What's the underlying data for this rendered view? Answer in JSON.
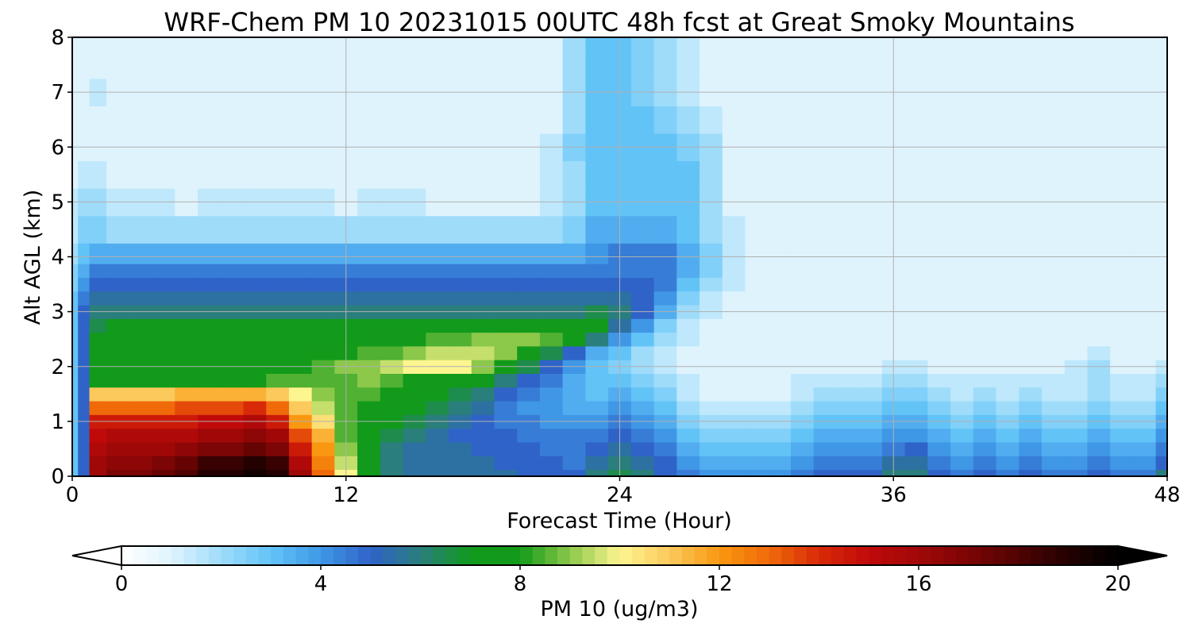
{
  "chart_data": {
    "type": "heatmap",
    "title": "WRF-Chem PM 10  20231015 00UTC 48h fcst at Great Smoky Mountains",
    "xlabel": "Forecast Time (Hour)",
    "ylabel": "Alt AGL (km)",
    "xlim": [
      0,
      48
    ],
    "ylim": [
      0,
      8
    ],
    "xticks": [
      0,
      12,
      24,
      36,
      48
    ],
    "yticks": [
      0,
      1,
      2,
      3,
      4,
      5,
      6,
      7,
      8
    ],
    "grid": true,
    "colorbar": {
      "label": "PM 10  (ug/m3)",
      "orientation": "horizontal",
      "position": "bottom",
      "range": [
        0,
        20
      ],
      "ticks": [
        0,
        4,
        8,
        12,
        16,
        20
      ],
      "extend": "both",
      "colors": {
        "0": "#ffffff",
        "1": "#dff3fd",
        "2": "#9fdcfa",
        "3": "#62c3f7",
        "4": "#3f97e6",
        "5": "#2f63c8",
        "6": "#2a7e7c",
        "7": "#119a1c",
        "8": "#139a1a",
        "9": "#8cc84a",
        "10": "#fdf590",
        "11": "#fbc95c",
        "12": "#f99810",
        "13": "#f06a0a",
        "14": "#d82a08",
        "15": "#c00a0a",
        "16": "#a00808",
        "17": "#7c0505",
        "18": "#4f0303",
        "19": "#230101",
        "20": "#000000"
      }
    },
    "x_hours": [
      0,
      0.5,
      1,
      2,
      3,
      4,
      5,
      6,
      7,
      8,
      9,
      10,
      11,
      12,
      13,
      14,
      15,
      16,
      17,
      18,
      19,
      20,
      21,
      22,
      23,
      24,
      25,
      26,
      27,
      28,
      29,
      30,
      31,
      32,
      33,
      34,
      35,
      36,
      37,
      38,
      39,
      40,
      41,
      42,
      43,
      44,
      45,
      46,
      47,
      48
    ],
    "y_km": [
      0,
      0.25,
      0.5,
      0.75,
      1,
      1.25,
      1.5,
      1.75,
      2,
      2.25,
      2.5,
      2.75,
      3,
      3.25,
      3.5,
      3.75,
      4,
      4.5,
      5,
      5.5,
      6,
      6.5,
      7,
      7.5,
      8
    ],
    "rows_pm10_by_altitude": [
      [
        3,
        5,
        16,
        17,
        17,
        17.5,
        18,
        19,
        19,
        19.5,
        19,
        16,
        13,
        10,
        7,
        6,
        5.5,
        5.5,
        5.5,
        5.5,
        5.5,
        5,
        5,
        5,
        6,
        6.5,
        6,
        5,
        4.5,
        4,
        4,
        4,
        4,
        4.5,
        5,
        5,
        5,
        6,
        6,
        5,
        4.5,
        5,
        4.5,
        5,
        4.5,
        4.5,
        5,
        4.5,
        4.5,
        6
      ],
      [
        3,
        5,
        16,
        16.5,
        16.5,
        17,
        17.5,
        18.5,
        18.5,
        19,
        18.5,
        15.5,
        12.5,
        9.5,
        7,
        6,
        5.5,
        5.5,
        5.5,
        5.5,
        5,
        5,
        5,
        4.5,
        5.5,
        6,
        5.5,
        5,
        4,
        3.5,
        3.5,
        3.5,
        3.5,
        4,
        4.5,
        4.5,
        4.5,
        5.5,
        5.5,
        4.5,
        4,
        4.5,
        4,
        4.5,
        4,
        4,
        4.5,
        4,
        4,
        5
      ],
      [
        3,
        5,
        15.5,
        16,
        16,
        16,
        16.5,
        17,
        17,
        17.5,
        17,
        14.5,
        12,
        9,
        7,
        6,
        5.5,
        5.5,
        5.5,
        5,
        5,
        5,
        4.5,
        4.5,
        5,
        5.5,
        5,
        4.5,
        3.5,
        3,
        3,
        3,
        3,
        3.5,
        4,
        4,
        4,
        4.5,
        5,
        4,
        3.5,
        4,
        3.5,
        4,
        3.5,
        3.5,
        4,
        3.5,
        3.5,
        4.5
      ],
      [
        3,
        5,
        15,
        15.5,
        15.5,
        15.5,
        15.5,
        16,
        16,
        16.5,
        16,
        13.5,
        11.5,
        8.5,
        7.5,
        6.5,
        6,
        5.5,
        5,
        5,
        5,
        4.5,
        4.5,
        4.5,
        4.5,
        5,
        4.5,
        4,
        3,
        2.5,
        2.5,
        2.5,
        2.5,
        3,
        3.5,
        3.5,
        3.5,
        4,
        4,
        3.5,
        3,
        3.5,
        3,
        3.5,
        3,
        3,
        3.5,
        3,
        3,
        4
      ],
      [
        3,
        5,
        14.5,
        14.5,
        14.5,
        14.5,
        14.5,
        15,
        15,
        15.5,
        14.5,
        12,
        10.5,
        8.5,
        7.5,
        7,
        6.5,
        6,
        5.5,
        5,
        4.5,
        4.5,
        4,
        4,
        4,
        4.5,
        4,
        3.5,
        2.5,
        2,
        2,
        2,
        2,
        2.5,
        3,
        3,
        3,
        3.5,
        3.5,
        3,
        2.5,
        3,
        2.5,
        3,
        2.5,
        2.5,
        3,
        2.5,
        2.5,
        3.5
      ],
      [
        3,
        5,
        13,
        13,
        13,
        13,
        13.5,
        13.5,
        13.5,
        14,
        13,
        11,
        9.5,
        8.5,
        8,
        7.5,
        7,
        6.5,
        6,
        5.5,
        4.5,
        4,
        4,
        3.5,
        3.5,
        4,
        3.5,
        3,
        2,
        1.5,
        1.5,
        1.5,
        1.5,
        2,
        2.5,
        2.5,
        2.5,
        3,
        3,
        2.5,
        2,
        2.5,
        2,
        2.5,
        2,
        2,
        2.5,
        2,
        2,
        3
      ],
      [
        3,
        5,
        11,
        11,
        11,
        11,
        11.5,
        11.5,
        11.5,
        11.5,
        11,
        10,
        9,
        8.5,
        8.5,
        8,
        7.5,
        7,
        6.5,
        6,
        5,
        4.5,
        4,
        3.5,
        3,
        3.5,
        3,
        2.5,
        1.5,
        1,
        1,
        1,
        1,
        1.5,
        2,
        2,
        2,
        2.5,
        2.5,
        2,
        1.5,
        2,
        1.5,
        2,
        1.5,
        1.5,
        2,
        1.5,
        1.5,
        2.5
      ],
      [
        3,
        5,
        7.5,
        8,
        8,
        8,
        8,
        8,
        8,
        8,
        8.5,
        8.5,
        8.5,
        8.5,
        9,
        8.5,
        8,
        8,
        7.5,
        7,
        6,
        5,
        4.5,
        3.5,
        3,
        3,
        2.5,
        2,
        1.5,
        1,
        1,
        1,
        1,
        1.5,
        1.5,
        1.5,
        1.5,
        2,
        2,
        1.5,
        1.5,
        1.5,
        1.5,
        1.5,
        1.5,
        1.5,
        2,
        1.5,
        1.5,
        2
      ],
      [
        3,
        5,
        7.5,
        7.5,
        7.5,
        7.5,
        7.5,
        7.5,
        7.5,
        7.5,
        7.5,
        8,
        8.5,
        9,
        9,
        9.5,
        10,
        10,
        10,
        9,
        8,
        6.5,
        5,
        4,
        3,
        2.5,
        2,
        1.5,
        1,
        1,
        1,
        1,
        1,
        1,
        1,
        1,
        1,
        1.5,
        1.5,
        1,
        1,
        1,
        1,
        1,
        1,
        1.5,
        2,
        1,
        1,
        1.5
      ],
      [
        3,
        5,
        7,
        7,
        7,
        7.5,
        7.5,
        7.5,
        7.5,
        7.5,
        7.5,
        7.5,
        8,
        8,
        8.5,
        8.5,
        9,
        9.5,
        9.5,
        9.5,
        9,
        8,
        6.5,
        5,
        3.5,
        3,
        2,
        1.5,
        1,
        1,
        1,
        1,
        1,
        1,
        1,
        1,
        1,
        1,
        1,
        1,
        1,
        1,
        1,
        1,
        1,
        1,
        1.5,
        1,
        1,
        1
      ],
      [
        3,
        5,
        7,
        7,
        7,
        7,
        7,
        7,
        7,
        7,
        7,
        7,
        7.5,
        7.5,
        7.5,
        8,
        8,
        8.5,
        8.5,
        9,
        9,
        9,
        8.5,
        7.5,
        6,
        4,
        3,
        2,
        1.5,
        1,
        1,
        1,
        1,
        1,
        1,
        1,
        1,
        1,
        1,
        1,
        1,
        1,
        1,
        1,
        1,
        1,
        1,
        1,
        1,
        1
      ],
      [
        3,
        5,
        6.5,
        7,
        7,
        7,
        7,
        7,
        7,
        7,
        7,
        7,
        7,
        7,
        7,
        7,
        7,
        7,
        7,
        7,
        7.5,
        7.5,
        7.5,
        7.5,
        7,
        5.5,
        4,
        2.5,
        1.5,
        1,
        1,
        1,
        1,
        1,
        1,
        1,
        1,
        1,
        1,
        1,
        1,
        1,
        1,
        1,
        1,
        1,
        1,
        1,
        1,
        1
      ],
      [
        3,
        5,
        6,
        6,
        6,
        6,
        6,
        6,
        6,
        6,
        6,
        6,
        6,
        6,
        6,
        6,
        6,
        6,
        6,
        6,
        6,
        6,
        6,
        6,
        6.5,
        6,
        5,
        3.5,
        2,
        1.5,
        1,
        1,
        1,
        1,
        1,
        1,
        1,
        1,
        1,
        1,
        1,
        1,
        1,
        1,
        1,
        1,
        1,
        1,
        1,
        1
      ],
      [
        3,
        4.5,
        5.5,
        5.5,
        5.5,
        5.5,
        5.5,
        5.5,
        5.5,
        5.5,
        5.5,
        5.5,
        5.5,
        5.5,
        5.5,
        5.5,
        5.5,
        5.5,
        5.5,
        5.5,
        5.5,
        5.5,
        5.5,
        5.5,
        5.5,
        5.5,
        5,
        4,
        2.5,
        1.5,
        1,
        1,
        1,
        1,
        1,
        1,
        1,
        1,
        1,
        1,
        1,
        1,
        1,
        1,
        1,
        1,
        1,
        1,
        1,
        1
      ],
      [
        2.5,
        4,
        5,
        5,
        5,
        5,
        5,
        5,
        5,
        5,
        5,
        5,
        5,
        5,
        5,
        5,
        5,
        5,
        5,
        5,
        5,
        5,
        5,
        5,
        5,
        5,
        5,
        4.5,
        3,
        2,
        1.5,
        1,
        1,
        1,
        1,
        1,
        1,
        1,
        1,
        1,
        1,
        1,
        1,
        1,
        1,
        1,
        1,
        1,
        1,
        1
      ],
      [
        2.5,
        3.5,
        4.5,
        4.5,
        4.5,
        4.5,
        4.5,
        4.5,
        4.5,
        4.5,
        4.5,
        4.5,
        4.5,
        4.5,
        4.5,
        4.5,
        4.5,
        4.5,
        4.5,
        4.5,
        4.5,
        4.5,
        4.5,
        4.5,
        4.5,
        4.5,
        4.5,
        4.5,
        3.5,
        2.5,
        1.5,
        1,
        1,
        1,
        1,
        1,
        1,
        1,
        1,
        1,
        1,
        1,
        1,
        1,
        1,
        1,
        1,
        1,
        1,
        1
      ],
      [
        2,
        3,
        3.5,
        3.5,
        3.5,
        3.5,
        3.5,
        3.5,
        3.5,
        3.5,
        3.5,
        3.5,
        3.5,
        3.5,
        3.5,
        3.5,
        3.5,
        3.5,
        3.5,
        3.5,
        3.5,
        3.5,
        3.5,
        3.5,
        4,
        4.5,
        4.5,
        4.5,
        3.5,
        2.5,
        1.5,
        1,
        1,
        1,
        1,
        1,
        1,
        1,
        1,
        1,
        1,
        1,
        1,
        1,
        1,
        1,
        1,
        1,
        1,
        1
      ],
      [
        1.5,
        2.5,
        2.5,
        2,
        2,
        2,
        2,
        2,
        2,
        2,
        2,
        2,
        2,
        2,
        2,
        2,
        2,
        2,
        2,
        2,
        2,
        2,
        2,
        2.5,
        3.5,
        3.5,
        3.5,
        3.5,
        3,
        2,
        1.5,
        1,
        1,
        1,
        1,
        1,
        1,
        1,
        1,
        1,
        1,
        1,
        1,
        1,
        1,
        1,
        1,
        1,
        1,
        1
      ],
      [
        1.5,
        2,
        2,
        1.5,
        1.5,
        1.5,
        1,
        1.5,
        1.5,
        1.5,
        1.5,
        1.5,
        1.5,
        1,
        1.5,
        1.5,
        1.5,
        1,
        1,
        1,
        1,
        1,
        1.5,
        2,
        3,
        3,
        3,
        3,
        3,
        2,
        1,
        1,
        1,
        1,
        1,
        1,
        1,
        1,
        1,
        1,
        1,
        1,
        1,
        1,
        1,
        1,
        1,
        1,
        1,
        1
      ],
      [
        1,
        1.5,
        1.5,
        1,
        1,
        1,
        1,
        1,
        1,
        1,
        1,
        1,
        1,
        1,
        1,
        1,
        1,
        1,
        1,
        1,
        1,
        1,
        1.5,
        2,
        3,
        3,
        3,
        3,
        3,
        2,
        1,
        1,
        1,
        1,
        1,
        1,
        1,
        1,
        1,
        1,
        1,
        1,
        1,
        1,
        1,
        1,
        1,
        1,
        1,
        1
      ],
      [
        1,
        1,
        1,
        1,
        1,
        1,
        1,
        1,
        1,
        1,
        1,
        1,
        1,
        1,
        1,
        1,
        1,
        1,
        1,
        1,
        1,
        1,
        1.5,
        2.5,
        3,
        3,
        3,
        3,
        2.5,
        2,
        1,
        1,
        1,
        1,
        1,
        1,
        1,
        1,
        1,
        1,
        1,
        1,
        1,
        1,
        1,
        1,
        1,
        1,
        1,
        1
      ],
      [
        1,
        1,
        1,
        1,
        1,
        1,
        1,
        1,
        1,
        1,
        1,
        1,
        1,
        1,
        1,
        1,
        1,
        1,
        1,
        1,
        1,
        1,
        1,
        2,
        3,
        3,
        3,
        2.5,
        2,
        1.5,
        1,
        1,
        1,
        1,
        1,
        1,
        1,
        1,
        1,
        1,
        1,
        1,
        1,
        1,
        1,
        1,
        1,
        1,
        1,
        1
      ],
      [
        1,
        1,
        1.5,
        1,
        1,
        1,
        1,
        1,
        1,
        1,
        1,
        1,
        1,
        1,
        1,
        1,
        1,
        1,
        1,
        1,
        1,
        1,
        1,
        2,
        3,
        3,
        2.5,
        2,
        1.5,
        1,
        1,
        1,
        1,
        1,
        1,
        1,
        1,
        1,
        1,
        1,
        1,
        1,
        1,
        1,
        1,
        1,
        1,
        1,
        1,
        1
      ],
      [
        1,
        1,
        1,
        1,
        1,
        1,
        1,
        1,
        1,
        1,
        1,
        1,
        1,
        1,
        1,
        1,
        1,
        1,
        1,
        1,
        1,
        1,
        1,
        2,
        3,
        3,
        2.5,
        2,
        1.5,
        1,
        1,
        1,
        1,
        1,
        1,
        1,
        1,
        1,
        1,
        1,
        1,
        1,
        1,
        1,
        1,
        1,
        1,
        1,
        1,
        1
      ],
      [
        1,
        1,
        1,
        1,
        1,
        1,
        1,
        1,
        1,
        1,
        1,
        1,
        1,
        1,
        1,
        1,
        1,
        1,
        1,
        1,
        1,
        1,
        1,
        2,
        3,
        3,
        2.5,
        2,
        1.5,
        1,
        1,
        1,
        1,
        1,
        1,
        1,
        1,
        1,
        1,
        1,
        1,
        1,
        1,
        1,
        1,
        1,
        1,
        1,
        1,
        1
      ]
    ]
  }
}
